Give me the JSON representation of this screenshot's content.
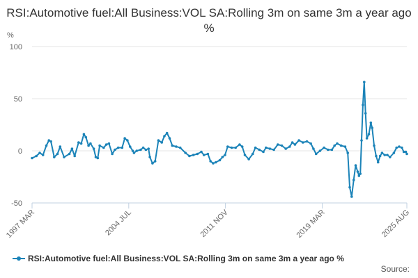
{
  "chart_data": {
    "type": "line",
    "title": "RSI:Automotive fuel:All Business:VOL SA:Rolling 3m on same 3m a year ago %",
    "ylabel": "%",
    "xlabel": "",
    "ylim": [
      -50,
      100
    ],
    "yticks": [
      -50,
      0,
      50,
      100
    ],
    "grid": true,
    "x_range": [
      1997.17,
      2025.58
    ],
    "xticks": [
      {
        "label": "1997 MAR",
        "value": 1997.17
      },
      {
        "label": "2004 JUL",
        "value": 2004.5
      },
      {
        "label": "2011 NOV",
        "value": 2011.83
      },
      {
        "label": "2019 MAR",
        "value": 2019.17
      },
      {
        "label": "2025 AUG",
        "value": 2025.58
      }
    ],
    "color": "#1b83b8",
    "series": [
      {
        "name": "RSI:Automotive fuel:All Business:VOL SA:Rolling 3m on same 3m a year ago %",
        "points": [
          [
            1997.17,
            -7
          ],
          [
            1997.5,
            -5
          ],
          [
            1997.75,
            -2
          ],
          [
            1998.0,
            -4
          ],
          [
            1998.25,
            5
          ],
          [
            1998.45,
            10
          ],
          [
            1998.6,
            9
          ],
          [
            1998.85,
            -6
          ],
          [
            1999.1,
            -3
          ],
          [
            1999.3,
            4
          ],
          [
            1999.6,
            -6
          ],
          [
            2000.0,
            -3
          ],
          [
            2000.2,
            2
          ],
          [
            2000.4,
            -5
          ],
          [
            2000.7,
            8
          ],
          [
            2000.9,
            7
          ],
          [
            2001.1,
            16
          ],
          [
            2001.25,
            13
          ],
          [
            2001.45,
            5
          ],
          [
            2001.6,
            7
          ],
          [
            2001.85,
            2
          ],
          [
            2002.0,
            -6
          ],
          [
            2002.15,
            -7
          ],
          [
            2002.3,
            5
          ],
          [
            2002.6,
            3
          ],
          [
            2002.8,
            6
          ],
          [
            2003.0,
            7
          ],
          [
            2003.25,
            -3
          ],
          [
            2003.45,
            1
          ],
          [
            2003.7,
            3
          ],
          [
            2004.0,
            3
          ],
          [
            2004.2,
            12
          ],
          [
            2004.4,
            10
          ],
          [
            2004.6,
            4
          ],
          [
            2004.8,
            0
          ],
          [
            2004.9,
            -2
          ],
          [
            2005.1,
            0
          ],
          [
            2005.4,
            1
          ],
          [
            2005.6,
            3
          ],
          [
            2005.8,
            1
          ],
          [
            2006.0,
            2
          ],
          [
            2006.1,
            -6
          ],
          [
            2006.3,
            -12
          ],
          [
            2006.5,
            -10
          ],
          [
            2006.75,
            10
          ],
          [
            2007.0,
            8
          ],
          [
            2007.2,
            14
          ],
          [
            2007.4,
            17
          ],
          [
            2007.6,
            12
          ],
          [
            2007.8,
            5
          ],
          [
            2008.1,
            4
          ],
          [
            2008.4,
            3
          ],
          [
            2008.8,
            -2
          ],
          [
            2009.1,
            -5
          ],
          [
            2009.4,
            -4
          ],
          [
            2009.7,
            -3
          ],
          [
            2010.0,
            -1
          ],
          [
            2010.2,
            -4
          ],
          [
            2010.5,
            -3
          ],
          [
            2010.7,
            -10
          ],
          [
            2010.9,
            -12
          ],
          [
            2011.1,
            -11
          ],
          [
            2011.4,
            -9
          ],
          [
            2011.6,
            -6
          ],
          [
            2011.8,
            -4
          ],
          [
            2012.0,
            4
          ],
          [
            2012.3,
            3
          ],
          [
            2012.6,
            3
          ],
          [
            2012.9,
            6
          ],
          [
            2013.1,
            4
          ],
          [
            2013.3,
            -4
          ],
          [
            2013.6,
            -8
          ],
          [
            2013.9,
            -3
          ],
          [
            2014.1,
            3
          ],
          [
            2014.4,
            1
          ],
          [
            2014.7,
            -1
          ],
          [
            2014.9,
            3
          ],
          [
            2015.2,
            2
          ],
          [
            2015.5,
            1
          ],
          [
            2015.8,
            6
          ],
          [
            2016.1,
            5
          ],
          [
            2016.4,
            2
          ],
          [
            2016.7,
            4
          ],
          [
            2016.9,
            8
          ],
          [
            2017.1,
            6
          ],
          [
            2017.4,
            10
          ],
          [
            2017.7,
            8
          ],
          [
            2018.0,
            9
          ],
          [
            2018.3,
            7
          ],
          [
            2018.5,
            2
          ],
          [
            2018.7,
            -3
          ],
          [
            2019.0,
            0
          ],
          [
            2019.3,
            3
          ],
          [
            2019.6,
            1
          ],
          [
            2019.9,
            1
          ],
          [
            2020.1,
            5
          ],
          [
            2020.3,
            7
          ],
          [
            2020.6,
            5
          ],
          [
            2020.9,
            4
          ],
          [
            2021.1,
            -2
          ],
          [
            2021.25,
            -35
          ],
          [
            2021.4,
            -44
          ],
          [
            2021.55,
            -28
          ],
          [
            2021.7,
            -14
          ],
          [
            2021.85,
            -20
          ],
          [
            2021.95,
            -24
          ],
          [
            2022.05,
            -22
          ],
          [
            2022.15,
            10
          ],
          [
            2022.25,
            44
          ],
          [
            2022.35,
            66
          ],
          [
            2022.45,
            36
          ],
          [
            2022.55,
            12
          ],
          [
            2022.7,
            16
          ],
          [
            2022.85,
            27
          ],
          [
            2022.95,
            22
          ],
          [
            2023.1,
            5
          ],
          [
            2023.25,
            -5
          ],
          [
            2023.4,
            -11
          ],
          [
            2023.55,
            -5
          ],
          [
            2023.7,
            -2
          ],
          [
            2023.9,
            -4
          ],
          [
            2024.1,
            -4
          ],
          [
            2024.3,
            -6
          ],
          [
            2024.6,
            -2
          ],
          [
            2024.8,
            3
          ],
          [
            2025.0,
            4
          ],
          [
            2025.2,
            3
          ],
          [
            2025.35,
            -1
          ],
          [
            2025.5,
            -1
          ],
          [
            2025.58,
            -3
          ]
        ]
      }
    ],
    "legend_position": "bottom-left",
    "source_label": "Source:"
  }
}
